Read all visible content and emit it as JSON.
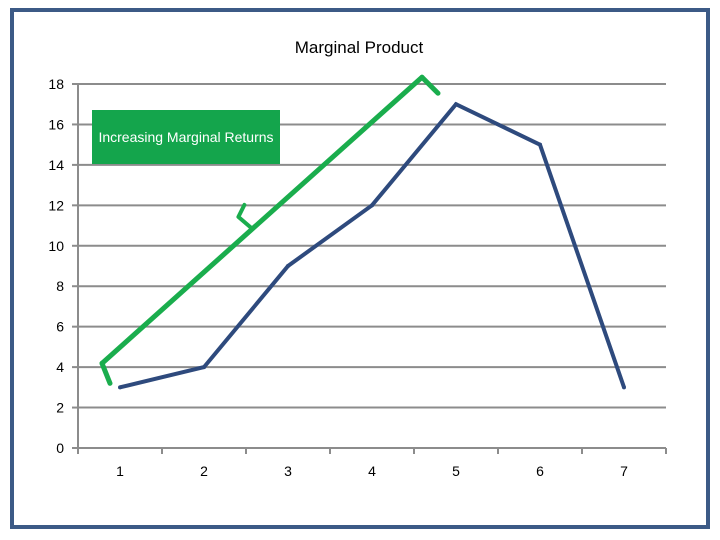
{
  "chart_data": {
    "type": "line",
    "title": "Marginal Product",
    "xlabel": "",
    "ylabel": "",
    "x": [
      1,
      2,
      3,
      4,
      5,
      6,
      7
    ],
    "series": [
      {
        "values": [
          3,
          4,
          9,
          12,
          17,
          15,
          3
        ]
      }
    ],
    "ylim": [
      0,
      18
    ],
    "yticks": [
      0,
      2,
      4,
      6,
      8,
      10,
      12,
      14,
      16,
      18
    ],
    "grid": "horizontal",
    "annotation": {
      "text": "Increasing Marginal Returns",
      "span": [
        1,
        5
      ]
    },
    "colors": {
      "line": "#2e4a7d",
      "bracket": "#1aad4d",
      "callout": "#14a54c",
      "grid": "#8c8c8c",
      "frame": "#3c5a86"
    }
  }
}
